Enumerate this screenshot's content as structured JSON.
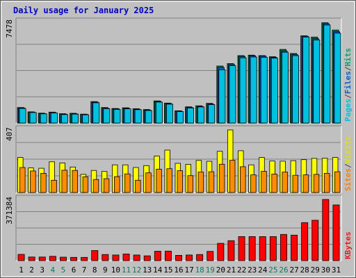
{
  "chart_data": {
    "type": "bar",
    "title": "Daily usage for January 2025",
    "days": [
      "1",
      "2",
      "3",
      "4",
      "5",
      "6",
      "7",
      "8",
      "9",
      "10",
      "11",
      "12",
      "13",
      "14",
      "15",
      "16",
      "17",
      "18",
      "19",
      "20",
      "21",
      "22",
      "23",
      "24",
      "25",
      "26",
      "27",
      "28",
      "29",
      "30",
      "31"
    ],
    "weekend_days": [
      "4",
      "5",
      "11",
      "12",
      "18",
      "19",
      "25",
      "26"
    ],
    "panels": [
      {
        "key": "traffic",
        "max_label": "7478",
        "ymax": 7478,
        "legend": [
          "Pages",
          "/",
          "Files",
          "/",
          "Hits"
        ],
        "legend_colors": [
          "#00c0e0",
          "#404040",
          "#0060c8",
          "#404040",
          "#00a070"
        ],
        "series": [
          {
            "name": "Hits",
            "color": "#00805b",
            "values": [
              1150,
              830,
              730,
              810,
              690,
              720,
              660,
              1590,
              1150,
              1080,
              1130,
              1060,
              1000,
              1640,
              1480,
              910,
              1200,
              1280,
              1460,
              4230,
              4410,
              5000,
              5040,
              5000,
              4920,
              5460,
              5160,
              6470,
              6380,
              7440,
              6900
            ]
          },
          {
            "name": "Files",
            "color": "#0060c8",
            "values": [
              1120,
              800,
              700,
              770,
              660,
              690,
              640,
              1550,
              1100,
              1050,
              1090,
              1020,
              960,
              1600,
              1440,
              880,
              1160,
              1230,
              1410,
              4120,
              4340,
              4940,
              4980,
              4960,
              4880,
              5350,
              5080,
              6440,
              6260,
              7370,
              6770
            ]
          },
          {
            "name": "Pages",
            "color": "#00c0e0",
            "values": [
              1080,
              780,
              680,
              750,
              630,
              660,
              610,
              1500,
              1060,
              1010,
              1050,
              990,
              930,
              1550,
              1400,
              850,
              1120,
              1190,
              1360,
              3950,
              4250,
              4840,
              4900,
              4880,
              4810,
              5250,
              5000,
              6380,
              6160,
              7270,
              6670
            ]
          }
        ]
      },
      {
        "key": "visits",
        "max_label": "407",
        "ymax": 407,
        "legend": [
          "Sites",
          "/",
          "Visits"
        ],
        "legend_colors": [
          "#ff8000",
          "#404040",
          "#e0e000"
        ],
        "series": [
          {
            "name": "Visits",
            "color": "#ffff00",
            "values": [
              228,
              160,
              158,
              200,
              192,
              166,
              118,
              144,
              137,
              180,
              180,
              163,
              175,
              237,
              276,
              190,
              183,
              209,
              203,
              268,
              407,
              272,
              180,
              228,
              205,
              204,
              207,
              214,
              222,
              223,
              228
            ]
          },
          {
            "name": "Sites",
            "color": "#ff8c00",
            "values": [
              163,
              140,
              125,
              80,
              145,
              144,
              102,
              85,
              90,
              103,
              121,
              80,
              128,
              152,
              155,
              142,
              110,
              133,
              135,
              184,
              210,
              168,
              115,
              138,
              120,
              133,
              112,
              115,
              118,
              125,
              135
            ]
          }
        ]
      },
      {
        "key": "kbytes",
        "max_label": "371384",
        "ymax": 371384,
        "legend": [
          "KBytes"
        ],
        "legend_colors": [
          "#e02020"
        ],
        "series": [
          {
            "name": "KBytes",
            "color": "#ff0000",
            "values": [
              38000,
              22000,
              22000,
              26000,
              21000,
              20000,
              20000,
              61000,
              37000,
              34000,
              40000,
              34000,
              29000,
              57000,
              58000,
              32000,
              34000,
              37000,
              56000,
              105000,
              121000,
              146000,
              146000,
              146000,
              146000,
              159000,
              155000,
              231000,
              245000,
              371384,
              338000
            ]
          }
        ]
      }
    ]
  }
}
